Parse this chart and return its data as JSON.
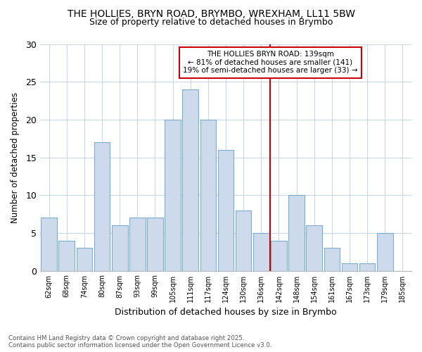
{
  "title_line1": "THE HOLLIES, BRYN ROAD, BRYMBO, WREXHAM, LL11 5BW",
  "title_line2": "Size of property relative to detached houses in Brymbo",
  "xlabel": "Distribution of detached houses by size in Brymbo",
  "ylabel": "Number of detached properties",
  "categories": [
    "62sqm",
    "68sqm",
    "74sqm",
    "80sqm",
    "87sqm",
    "93sqm",
    "99sqm",
    "105sqm",
    "111sqm",
    "117sqm",
    "124sqm",
    "130sqm",
    "136sqm",
    "142sqm",
    "148sqm",
    "154sqm",
    "161sqm",
    "167sqm",
    "173sqm",
    "179sqm",
    "185sqm"
  ],
  "values": [
    7,
    4,
    3,
    17,
    6,
    7,
    7,
    20,
    24,
    20,
    16,
    8,
    5,
    4,
    10,
    6,
    3,
    1,
    1,
    5,
    0
  ],
  "bar_color": "#ccdaeb",
  "bar_edge_color": "#7aaed0",
  "vline_color": "#cc0000",
  "ylim": [
    0,
    30
  ],
  "yticks": [
    0,
    5,
    10,
    15,
    20,
    25,
    30
  ],
  "annotation_title": "THE HOLLIES BRYN ROAD: 139sqm",
  "annotation_line2": "← 81% of detached houses are smaller (141)",
  "annotation_line3": "19% of semi-detached houses are larger (33) →",
  "annotation_box_color": "#cc0000",
  "grid_color": "#c8d8e8",
  "background_color": "#ffffff",
  "footer_line1": "Contains HM Land Registry data © Crown copyright and database right 2025.",
  "footer_line2": "Contains public sector information licensed under the Open Government Licence v3.0."
}
